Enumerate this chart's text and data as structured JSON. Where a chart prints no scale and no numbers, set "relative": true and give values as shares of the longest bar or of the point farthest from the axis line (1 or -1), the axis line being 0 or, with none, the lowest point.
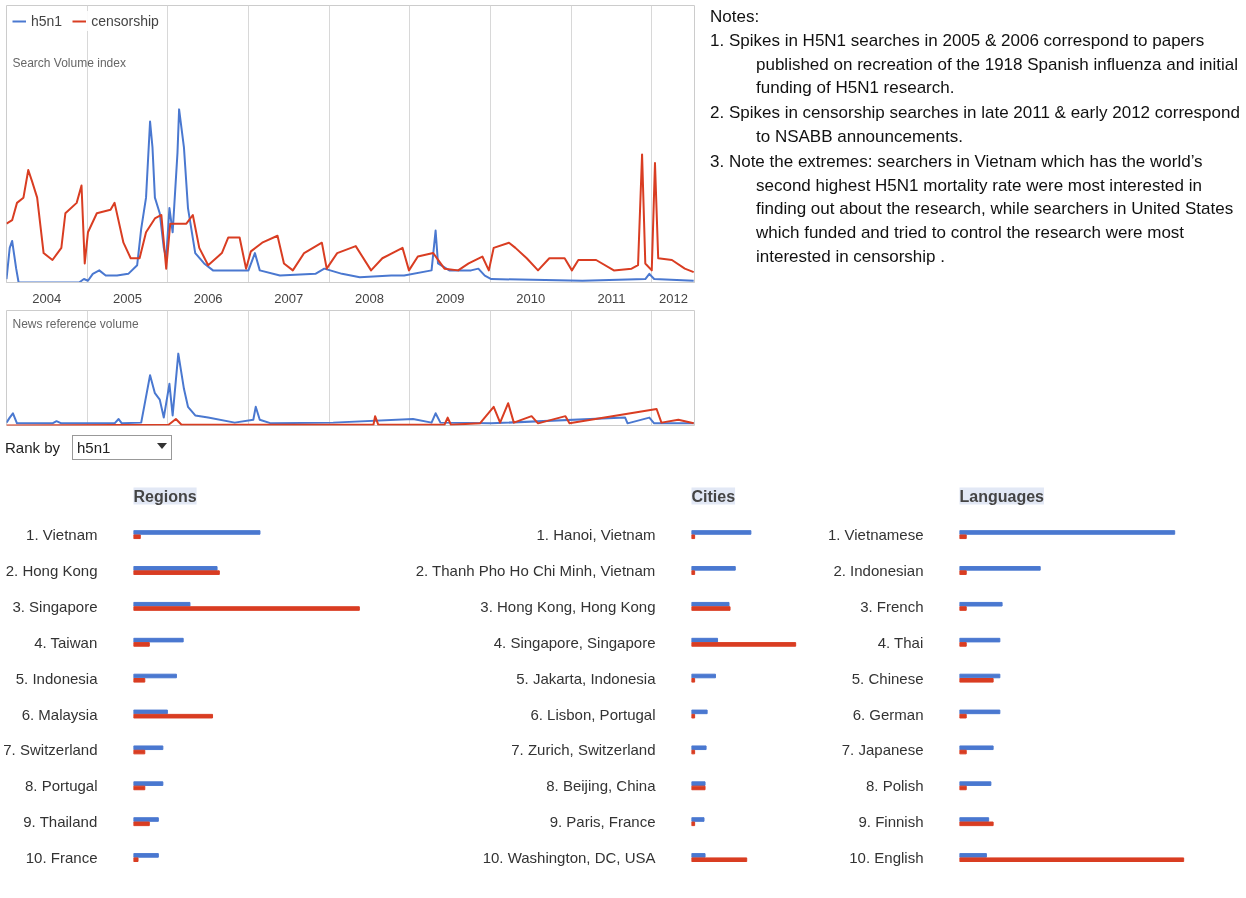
{
  "chart_data": [
    {
      "type": "line",
      "relative": true,
      "legend": "top left",
      "grid": "x",
      "tick_labels": "x",
      "annotations": [
        "Search Volume index"
      ],
      "xlim": [
        2004,
        2012.53
      ],
      "xticks": [
        {
          "value": 2004.5,
          "label": "2004"
        },
        {
          "value": 2005,
          "label": null
        },
        {
          "value": 2005.5,
          "label": "2005"
        },
        {
          "value": 2006,
          "label": null
        },
        {
          "value": 2006.5,
          "label": "2006"
        },
        {
          "value": 2007,
          "label": null
        },
        {
          "value": 2007.5,
          "label": "2007"
        },
        {
          "value": 2008,
          "label": null
        },
        {
          "value": 2008.5,
          "label": "2008"
        },
        {
          "value": 2009,
          "label": null
        },
        {
          "value": 2009.5,
          "label": "2009"
        },
        {
          "value": 2010,
          "label": null
        },
        {
          "value": 2010.5,
          "label": "2010"
        },
        {
          "value": 2011,
          "label": null
        },
        {
          "value": 2011.5,
          "label": "2011"
        },
        {
          "value": 2012,
          "label": null
        },
        {
          "value": 2012.27,
          "label": "2012"
        }
      ],
      "series": [
        {
          "name": "h5n1",
          "color": "#4a78d0",
          "x": [
            2004.0,
            2004.04,
            2004.07,
            2004.12,
            2004.15,
            2004.9,
            2004.96,
            2005.01,
            2005.07,
            2005.15,
            2005.23,
            2005.37,
            2005.51,
            2005.62,
            2005.67,
            2005.73,
            2005.78,
            2005.81,
            2005.84,
            2005.9,
            2005.95,
            2005.98,
            2006.02,
            2006.06,
            2006.12,
            2006.14,
            2006.2,
            2006.25,
            2006.34,
            2006.45,
            2006.56,
            2006.83,
            2007.0,
            2007.08,
            2007.14,
            2007.39,
            2007.83,
            2007.94,
            2008.16,
            2008.38,
            2008.77,
            2008.93,
            2009.27,
            2009.32,
            2009.35,
            2009.49,
            2009.76,
            2009.85,
            2009.93,
            2010.01,
            2011.14,
            2011.92,
            2011.97,
            2012.03,
            2012.52
          ],
          "values": [
            0.02,
            0.2,
            0.24,
            0.08,
            0.0,
            0.0,
            0.02,
            0.01,
            0.05,
            0.07,
            0.04,
            0.04,
            0.05,
            0.1,
            0.31,
            0.49,
            0.93,
            0.78,
            0.49,
            0.4,
            0.2,
            0.14,
            0.43,
            0.29,
            0.75,
            1.0,
            0.78,
            0.43,
            0.17,
            0.11,
            0.07,
            0.07,
            0.07,
            0.17,
            0.07,
            0.04,
            0.05,
            0.08,
            0.05,
            0.03,
            0.04,
            0.04,
            0.07,
            0.3,
            0.11,
            0.07,
            0.07,
            0.08,
            0.04,
            0.02,
            0.01,
            0.02,
            0.05,
            0.02,
            0.01
          ]
        },
        {
          "name": "censorship",
          "color": "#d93d22",
          "x": [
            2004.0,
            2004.07,
            2004.13,
            2004.21,
            2004.27,
            2004.32,
            2004.38,
            2004.46,
            2004.57,
            2004.68,
            2004.73,
            2004.87,
            2004.93,
            2004.97,
            2005.01,
            2005.12,
            2005.29,
            2005.34,
            2005.45,
            2005.54,
            2005.65,
            2005.73,
            2005.84,
            2005.92,
            2005.98,
            2006.03,
            2006.23,
            2006.31,
            2006.39,
            2006.5,
            2006.67,
            2006.75,
            2006.89,
            2006.97,
            2007.03,
            2007.17,
            2007.36,
            2007.44,
            2007.55,
            2007.69,
            2007.91,
            2007.97,
            2008.1,
            2008.33,
            2008.52,
            2008.66,
            2008.91,
            2008.99,
            2009.1,
            2009.29,
            2009.43,
            2009.6,
            2009.73,
            2009.9,
            2009.98,
            2010.04,
            2010.23,
            2010.31,
            2010.45,
            2010.59,
            2010.73,
            2010.92,
            2011.01,
            2011.09,
            2011.31,
            2011.53,
            2011.75,
            2011.83,
            2011.88,
            2011.92,
            2012.0,
            2012.04,
            2012.08,
            2012.25,
            2012.41,
            2012.52
          ],
          "values": [
            0.34,
            0.36,
            0.46,
            0.49,
            0.65,
            0.58,
            0.49,
            0.17,
            0.13,
            0.2,
            0.4,
            0.46,
            0.56,
            0.11,
            0.29,
            0.4,
            0.42,
            0.46,
            0.23,
            0.14,
            0.14,
            0.29,
            0.37,
            0.39,
            0.08,
            0.34,
            0.34,
            0.39,
            0.2,
            0.1,
            0.17,
            0.26,
            0.26,
            0.08,
            0.18,
            0.23,
            0.27,
            0.11,
            0.07,
            0.17,
            0.23,
            0.08,
            0.17,
            0.21,
            0.07,
            0.14,
            0.2,
            0.07,
            0.15,
            0.17,
            0.08,
            0.07,
            0.11,
            0.15,
            0.07,
            0.2,
            0.23,
            0.2,
            0.14,
            0.07,
            0.14,
            0.14,
            0.07,
            0.13,
            0.13,
            0.07,
            0.08,
            0.1,
            0.74,
            0.11,
            0.07,
            0.69,
            0.14,
            0.13,
            0.08,
            0.06
          ]
        }
      ]
    },
    {
      "type": "line",
      "relative": true,
      "grid": "x",
      "tick_labels": false,
      "annotations": [
        "News reference volume"
      ],
      "xlim": [
        2004,
        2012.53
      ],
      "xticks": [
        {
          "value": 2005,
          "label": null
        },
        {
          "value": 2006,
          "label": null
        },
        {
          "value": 2007,
          "label": null
        },
        {
          "value": 2008,
          "label": null
        },
        {
          "value": 2009,
          "label": null
        },
        {
          "value": 2010,
          "label": null
        },
        {
          "value": 2011,
          "label": null
        },
        {
          "value": 2012,
          "label": null
        }
      ],
      "series": [
        {
          "color": "#4a78d0",
          "x": [
            2004.0,
            2004.04,
            2004.08,
            2004.13,
            2004.57,
            2004.62,
            2004.68,
            2005.34,
            2005.39,
            2005.43,
            2005.67,
            2005.78,
            2005.84,
            2005.9,
            2005.95,
            2006.02,
            2006.06,
            2006.13,
            2006.2,
            2006.25,
            2006.34,
            2006.5,
            2006.83,
            2007.06,
            2007.09,
            2007.14,
            2007.28,
            2008.05,
            2009.04,
            2009.27,
            2009.32,
            2009.38,
            2010.01,
            2011.67,
            2011.7,
            2011.97,
            2012.03,
            2012.52
          ],
          "values": [
            0.04,
            0.11,
            0.17,
            0.03,
            0.03,
            0.06,
            0.03,
            0.03,
            0.09,
            0.03,
            0.04,
            0.7,
            0.45,
            0.36,
            0.11,
            0.58,
            0.14,
            1.0,
            0.51,
            0.26,
            0.14,
            0.11,
            0.04,
            0.08,
            0.26,
            0.08,
            0.03,
            0.04,
            0.09,
            0.04,
            0.17,
            0.04,
            0.03,
            0.11,
            0.03,
            0.11,
            0.03,
            0.03
          ]
        },
        {
          "color": "#d93d22",
          "x": [
            2004.0,
            2006.01,
            2006.1,
            2006.17,
            2008.55,
            2008.57,
            2008.61,
            2009.43,
            2009.47,
            2009.51,
            2009.87,
            2010.04,
            2010.12,
            2010.22,
            2010.29,
            2010.51,
            2010.59,
            2010.93,
            2010.98,
            2012.06,
            2012.12,
            2012.33,
            2012.52
          ],
          "values": [
            0.0,
            0.01,
            0.09,
            0.01,
            0.01,
            0.13,
            0.01,
            0.01,
            0.11,
            0.01,
            0.03,
            0.26,
            0.04,
            0.31,
            0.04,
            0.13,
            0.03,
            0.13,
            0.03,
            0.23,
            0.04,
            0.08,
            0.03
          ]
        }
      ]
    },
    {
      "type": "other",
      "title": "Notes:",
      "annotations": [
        "1. Spikes in H5N1 searches in 2005 & 2006 correspond to papers published on recreation of the 1918 Spanish influenza and initial funding of H5N1 research.",
        "2. Spikes in censorship searches in late 2011 & early 2012 correspond to NSABB announcements.",
        "3. Note the extremes: searchers in Vietnam which has the world’s second highest H5N1 mortality rate were most interested in finding out about the research, while searchers in United States which funded and tried to control the research were most interested in censorship ."
      ]
    },
    {
      "type": "other",
      "annotations": [
        "Rank by",
        "h5n1"
      ]
    },
    {
      "type": "bar",
      "orientation": "horizontal",
      "relative": true,
      "title": "Regions",
      "categories": [
        "1. Vietnam",
        "2. Hong Kong",
        "3. Singapore",
        "4. Taiwan",
        "5. Indonesia",
        "6. Malaysia",
        "7. Switzerland",
        "8. Portugal",
        "9. Thailand",
        "10. France"
      ],
      "series": [
        {
          "color": "#4a78d0",
          "values": [
            0.56,
            0.37,
            0.25,
            0.22,
            0.19,
            0.15,
            0.13,
            0.13,
            0.11,
            0.11
          ]
        },
        {
          "color": "#d93d22",
          "values": [
            0.03,
            0.38,
            1.0,
            0.07,
            0.05,
            0.35,
            0.05,
            0.05,
            0.07,
            0.02
          ]
        }
      ]
    },
    {
      "type": "bar",
      "orientation": "horizontal",
      "relative": true,
      "title": "Cities",
      "categories": [
        "1. Hanoi, Vietnam",
        "2. Thanh Pho Ho Chi Minh, Vietnam",
        "3. Hong Kong, Hong Kong",
        "4. Singapore, Singapore",
        "5. Jakarta, Indonesia",
        "6. Lisbon, Portugal",
        "7. Zurich, Switzerland",
        "8. Beijing, China",
        "9. Paris, France",
        "10. Washington, DC, USA"
      ],
      "series": [
        {
          "color": "#4a78d0",
          "values": [
            0.57,
            0.42,
            0.36,
            0.25,
            0.23,
            0.15,
            0.14,
            0.13,
            0.12,
            0.13
          ]
        },
        {
          "color": "#d93d22",
          "values": [
            0.03,
            0.03,
            0.37,
            1.0,
            0.03,
            0.03,
            0.03,
            0.13,
            0.03,
            0.53
          ]
        }
      ]
    },
    {
      "type": "bar",
      "orientation": "horizontal",
      "relative": true,
      "title": "Languages",
      "categories": [
        "1. Vietnamese",
        "2. Indonesian",
        "3. French",
        "4. Thai",
        "5. Chinese",
        "6. German",
        "7. Japanese",
        "8. Polish",
        "9. Finnish",
        "10. English"
      ],
      "series": [
        {
          "color": "#4a78d0",
          "values": [
            0.96,
            0.36,
            0.19,
            0.18,
            0.18,
            0.18,
            0.15,
            0.14,
            0.13,
            0.12
          ]
        },
        {
          "color": "#d93d22",
          "values": [
            0.03,
            0.03,
            0.03,
            0.03,
            0.15,
            0.03,
            0.03,
            0.03,
            0.15,
            1.0
          ]
        }
      ]
    }
  ]
}
